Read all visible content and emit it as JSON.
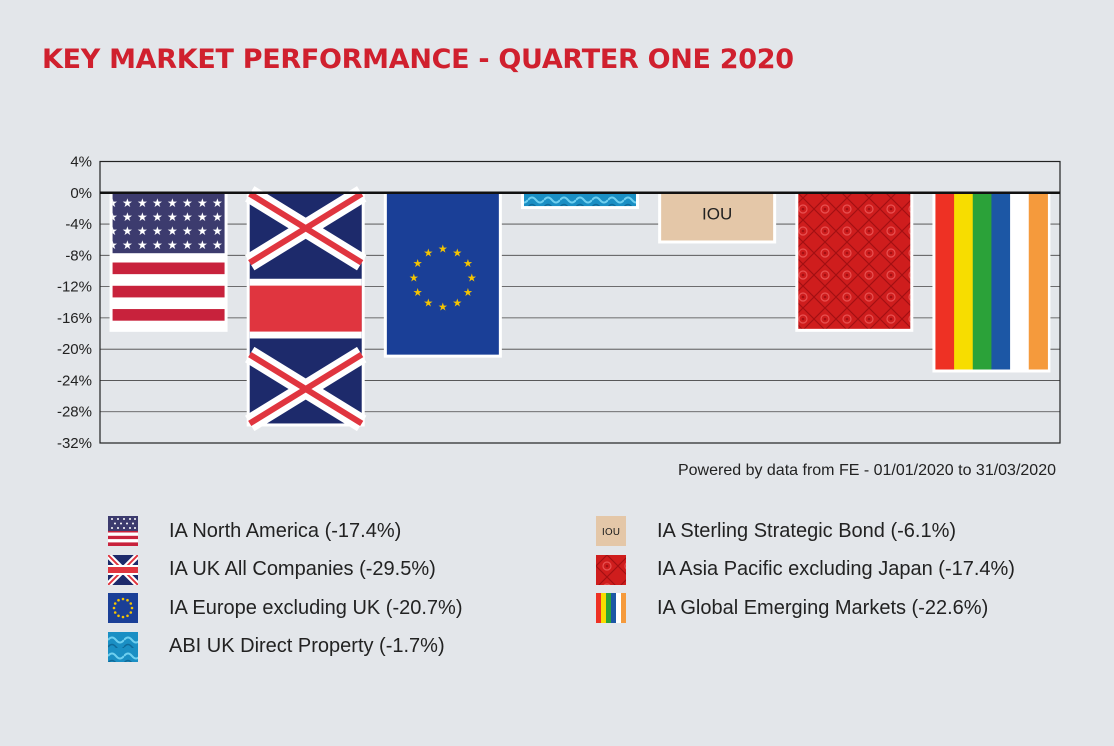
{
  "title": "KEY MARKET PERFORMANCE - QUARTER ONE 2020",
  "source_note": "Powered by data from FE - 01/01/2020 to 31/03/2020",
  "chart_data": {
    "type": "bar",
    "title": "KEY MARKET PERFORMANCE - QUARTER ONE 2020",
    "xlabel": "",
    "ylabel": "",
    "ylim": [
      -32,
      4
    ],
    "yticks": [
      4,
      0,
      -4,
      -8,
      -12,
      -16,
      -20,
      -24,
      -28,
      -32
    ],
    "ytick_labels": [
      "4%",
      "0%",
      "-4%",
      "-8%",
      "-12%",
      "-16%",
      "-20%",
      "-24%",
      "-28%",
      "-32%"
    ],
    "grid": true,
    "legend_position": "bottom",
    "categories": [
      "IA North America",
      "IA UK All Companies",
      "IA Europe excluding UK",
      "ABI UK Direct Property",
      "IA Sterling Strategic Bond",
      "IA Asia Pacific excluding Japan",
      "IA Global Emerging Markets"
    ],
    "values": [
      -17.4,
      -29.5,
      -20.7,
      -1.7,
      -6.1,
      -17.4,
      -22.6
    ],
    "legend": [
      {
        "label": "IA North America (-17.4%)",
        "icon": "us-flag-icon"
      },
      {
        "label": "IA UK All Companies (-29.5%)",
        "icon": "union-jack-icon"
      },
      {
        "label": "IA Europe excluding UK (-20.7%)",
        "icon": "eu-flag-icon"
      },
      {
        "label": "ABI UK Direct Property (-1.7%)",
        "icon": "water-texture-icon"
      },
      {
        "label": "IA Sterling Strategic Bond (-6.1%)",
        "icon": "iou-note-icon"
      },
      {
        "label": "IA Asia Pacific excluding Japan (-17.4%)",
        "icon": "chinese-pattern-icon"
      },
      {
        "label": "IA Global Emerging Markets (-22.6%)",
        "icon": "rainbow-stripes-icon"
      }
    ],
    "bar_annotation": "IOU"
  },
  "colors": {
    "title": "#d0202e",
    "us_red": "#c8223c",
    "us_blue": "#3c3b6e",
    "uk_blue": "#1d2a6b",
    "uk_red": "#e0353f",
    "eu_blue": "#1a3f97",
    "eu_gold": "#f5c400",
    "water": "#1a8fc4",
    "iou": "#e4c7a8",
    "asia_red": "#cf1d1d",
    "rainbow": [
      "#ee3124",
      "#f7dd00",
      "#2ba239",
      "#1c57a5",
      "#ffffff",
      "#f59a3c"
    ]
  }
}
